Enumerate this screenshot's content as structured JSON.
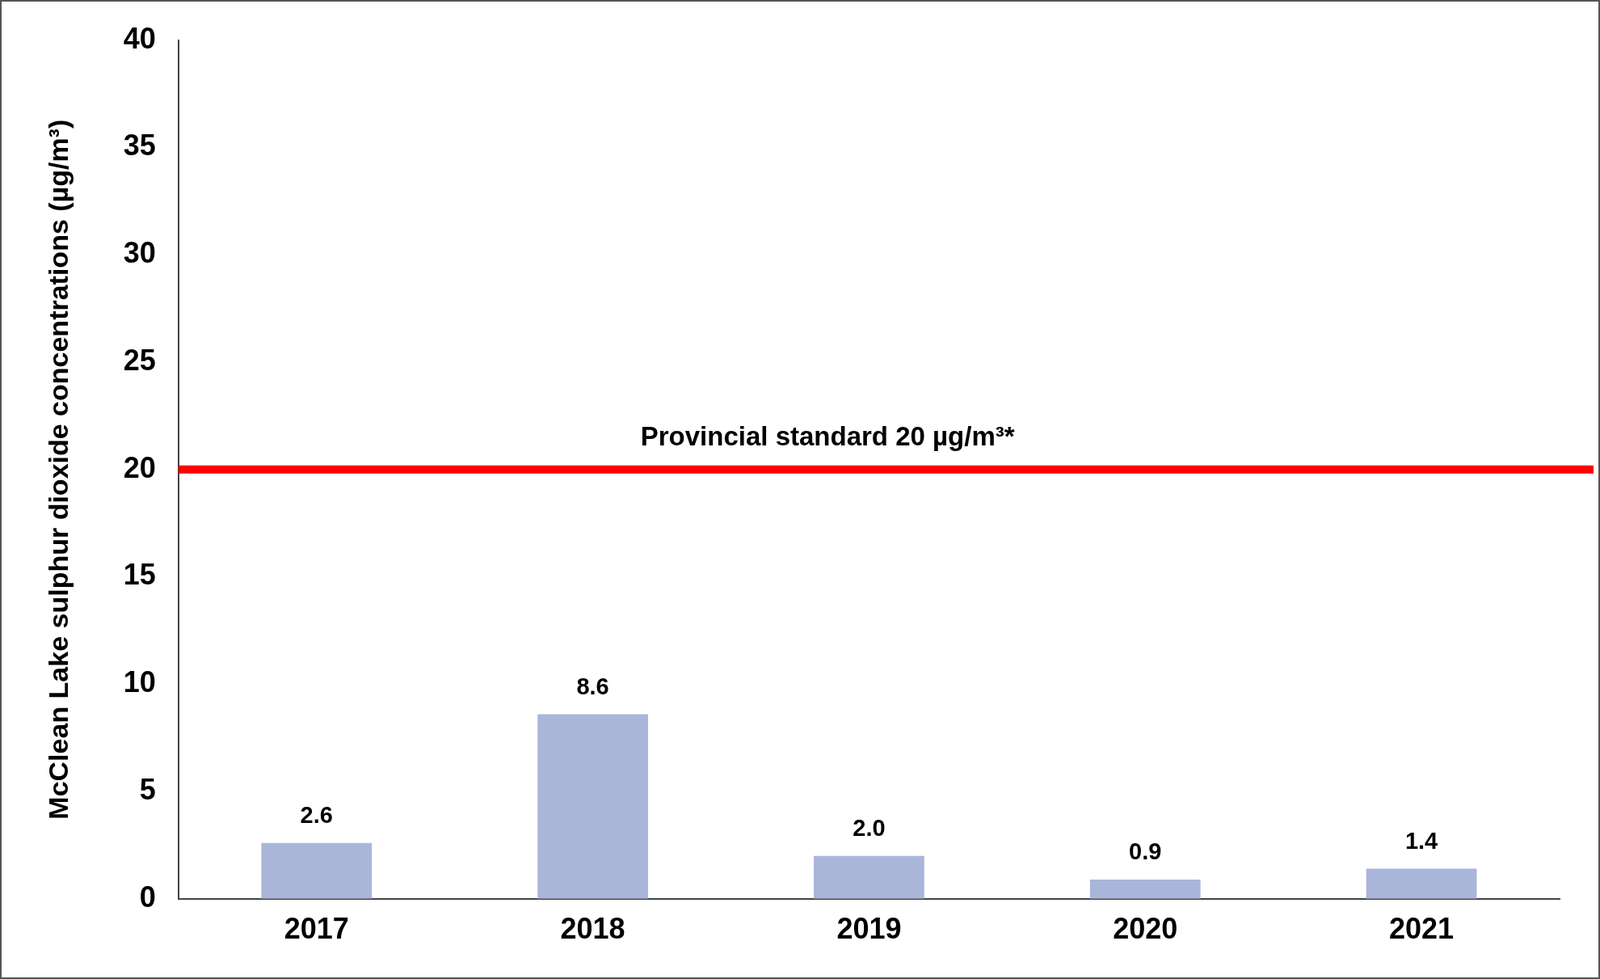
{
  "chart_data": {
    "type": "bar",
    "y_label": "McClean Lake sulphur dioxide concentrations (µg/m³)",
    "categories": [
      "2017",
      "2018",
      "2019",
      "2020",
      "2021"
    ],
    "values": [
      2.6,
      8.6,
      2.0,
      0.9,
      1.4
    ],
    "value_labels": [
      "2.6",
      "8.6",
      "2.0",
      "0.9",
      "1.4"
    ],
    "color": "#a9b6da",
    "ylim": [
      0,
      40
    ],
    "yticks": [
      0,
      5,
      10,
      15,
      20,
      25,
      30,
      35,
      40
    ],
    "grid": false,
    "data_labels": true,
    "annotations": [
      {
        "y": 20,
        "text": "Provincial standard 20 µg/m³*",
        "color": "#ff0000"
      }
    ]
  }
}
